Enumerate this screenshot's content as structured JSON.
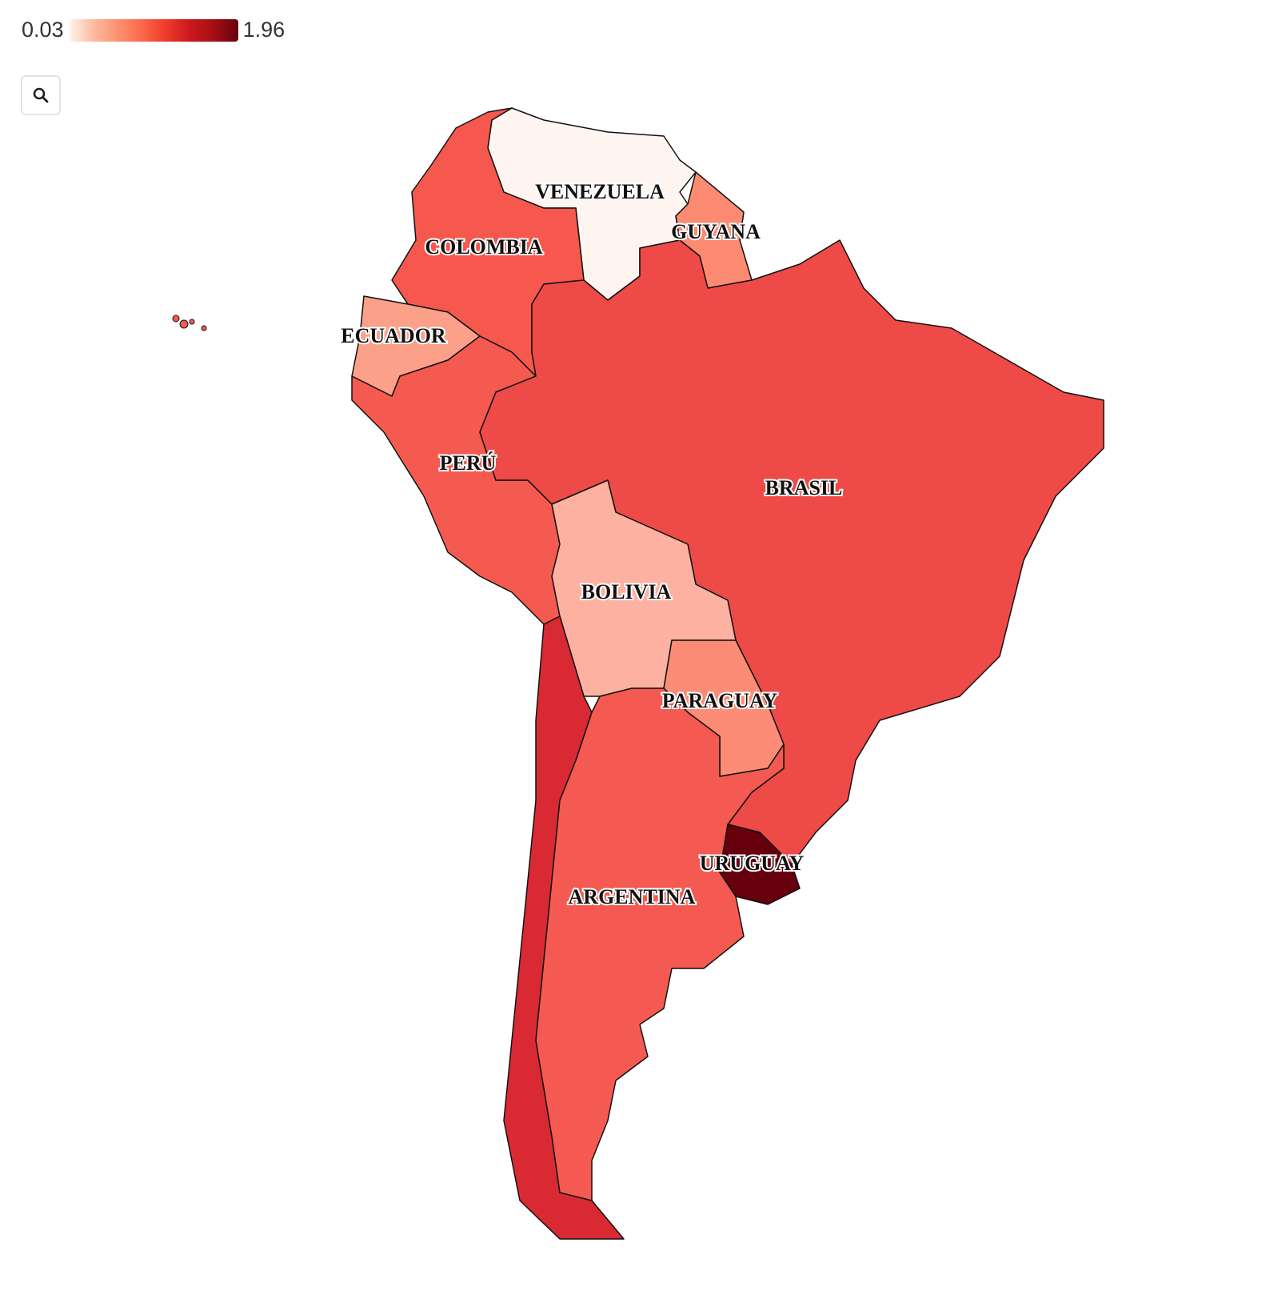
{
  "legend": {
    "min_label": "0.03",
    "max_label": "1.96",
    "min": 0.03,
    "max": 1.96,
    "colorscale": [
      "#fff5f0",
      "#fcbba1",
      "#fc9272",
      "#fb6a4a",
      "#ef3b2c",
      "#cb181d",
      "#a50f15",
      "#67000d"
    ]
  },
  "controls": {
    "zoom_icon": "search-icon"
  },
  "map": {
    "countries": [
      {
        "id": "venezuela",
        "label": "VENEZUELA",
        "value": 0.03,
        "color": "#fff5f0"
      },
      {
        "id": "guyana",
        "label": "GUYANA",
        "value": 0.7,
        "color": "#fc8b72"
      },
      {
        "id": "colombia",
        "label": "COLOMBIA",
        "value": 0.95,
        "color": "#f6584e"
      },
      {
        "id": "ecuador",
        "label": "ECUADOR",
        "value": 0.6,
        "color": "#fca08a"
      },
      {
        "id": "peru",
        "label": "PERÚ",
        "value": 0.95,
        "color": "#f55a50"
      },
      {
        "id": "brasil",
        "label": "BRASIL",
        "value": 1.05,
        "color": "#ee4a47"
      },
      {
        "id": "bolivia",
        "label": "BOLIVIA",
        "value": 0.5,
        "color": "#fcb1a1"
      },
      {
        "id": "paraguay",
        "label": "PARAGUAY",
        "value": 0.7,
        "color": "#fc8c76"
      },
      {
        "id": "chile",
        "label": "",
        "value": 1.3,
        "color": "#d92a34"
      },
      {
        "id": "argentina",
        "label": "ARGENTINA",
        "value": 0.95,
        "color": "#f45a51"
      },
      {
        "id": "uruguay",
        "label": "URUGUAY",
        "value": 1.96,
        "color": "#67000d"
      }
    ]
  }
}
